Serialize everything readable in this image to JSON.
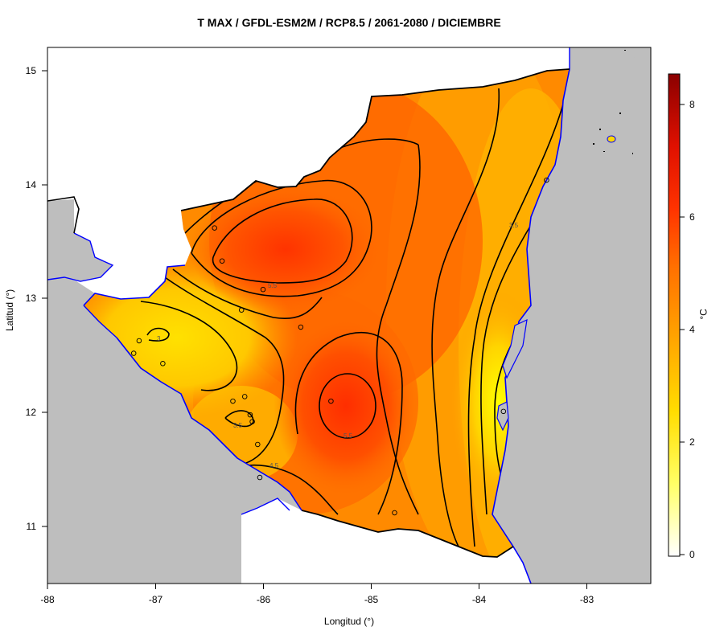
{
  "title": "T MAX / GFDL-ESM2M / RCP8.5 / 2061-2080 / DICIEMBRE",
  "xlabel": "Longitud (°)",
  "ylabel": "Latitud (°)",
  "unit_label": "°C",
  "x_ticks": [
    "-88",
    "-87",
    "-86",
    "-85",
    "-84",
    "-83"
  ],
  "y_ticks": [
    "15",
    "14",
    "13",
    "12",
    "11"
  ],
  "colorbar_ticks": [
    "8",
    "6",
    "4",
    "2",
    "0"
  ],
  "contour_labels": [
    "3.5",
    "4.5",
    "5.5",
    "5.5",
    "3",
    "3.5"
  ],
  "colors": {
    "ocean": "#bebebe",
    "coast": "#0000ff",
    "hot": "#ff3300",
    "warm": "#ff8c00",
    "mild": "#ffd700",
    "border": "#000000"
  },
  "chart_data": {
    "type": "heatmap",
    "variable": "T MAX",
    "model": "GFDL-ESM2M",
    "scenario": "RCP8.5",
    "period": "2061-2080",
    "month": "DICIEMBRE",
    "xlim": [
      -88,
      -82.4
    ],
    "ylim": [
      10.5,
      15.2
    ],
    "colorbar_range": [
      0,
      8.5
    ],
    "contour_levels": [
      3,
      3.5,
      4,
      4.5,
      5,
      5.5
    ],
    "maxima": [
      {
        "lon": -85.9,
        "lat": 13.4,
        "value": 5.8
      },
      {
        "lon": -85.2,
        "lat": 12.1,
        "value": 5.8
      }
    ],
    "minima": [
      {
        "lon": -87.0,
        "lat": 12.7,
        "value": 2.9
      },
      {
        "lon": -83.8,
        "lat": 12.0,
        "value": 2.4
      }
    ],
    "stations": [
      {
        "lon": -86.45,
        "lat": 13.62
      },
      {
        "lon": -86.38,
        "lat": 13.33
      },
      {
        "lon": -86.0,
        "lat": 13.08
      },
      {
        "lon": -86.2,
        "lat": 12.9
      },
      {
        "lon": -85.65,
        "lat": 12.75
      },
      {
        "lon": -87.15,
        "lat": 12.63
      },
      {
        "lon": -87.2,
        "lat": 12.52
      },
      {
        "lon": -86.93,
        "lat": 12.43
      },
      {
        "lon": -86.28,
        "lat": 12.1
      },
      {
        "lon": -86.17,
        "lat": 12.14
      },
      {
        "lon": -86.12,
        "lat": 11.98
      },
      {
        "lon": -86.1,
        "lat": 11.92
      },
      {
        "lon": -86.05,
        "lat": 11.72
      },
      {
        "lon": -86.03,
        "lat": 11.43
      },
      {
        "lon": -85.37,
        "lat": 12.1
      },
      {
        "lon": -84.78,
        "lat": 11.12
      },
      {
        "lon": -83.77,
        "lat": 12.01
      },
      {
        "lon": -83.37,
        "lat": 14.04
      }
    ]
  }
}
